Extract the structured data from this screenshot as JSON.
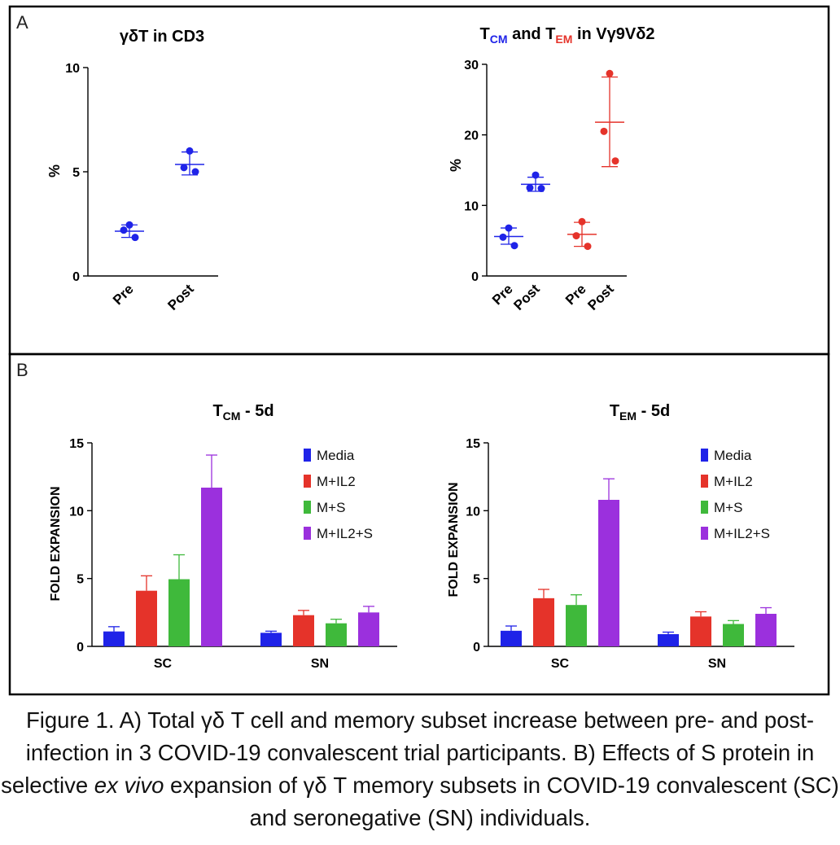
{
  "panel_a": {
    "letter": "A",
    "chart1": {
      "title": "γδT in CD3",
      "ylabel": "%",
      "y_ticks": [
        "0",
        "5",
        "10"
      ],
      "x_ticks": [
        "Pre",
        "Post"
      ]
    },
    "chart2": {
      "title_t1": "T",
      "title_sub1": "CM",
      "title_and": " and ",
      "title_t2": "T",
      "title_sub2": "EM",
      "title_rest": " in Vγ9Vδ2",
      "ylabel": "%",
      "y_ticks": [
        "0",
        "10",
        "20",
        "30"
      ],
      "x_ticks": [
        "Pre",
        "Post",
        "Pre",
        "Post"
      ]
    }
  },
  "panel_b": {
    "letter": "B",
    "chart3": {
      "title_t": "T",
      "title_sub": "CM",
      "title_rest": " - 5d",
      "ylabel": "FOLD EXPANSION",
      "y_ticks": [
        "0",
        "5",
        "10",
        "15"
      ],
      "x_ticks": [
        "SC",
        "SN"
      ]
    },
    "chart4": {
      "title_t": "T",
      "title_sub": "EM",
      "title_rest": " - 5d",
      "ylabel": "FOLD EXPANSION",
      "y_ticks": [
        "0",
        "5",
        "10",
        "15"
      ],
      "x_ticks": [
        "SC",
        "SN"
      ]
    },
    "legend": [
      "Media",
      "M+IL2",
      "M+S",
      "M+IL2+S"
    ]
  },
  "caption": {
    "part1": "Figure 1. A) Total γδ T cell and memory subset increase between pre- and post-infection in 3 COVID-19 convalescent trial participants. B) Effects of S protein in selective ",
    "italic": "ex vivo",
    "part2": " expansion of γδ T memory subsets in COVID-19 convalescent (SC) and seronegative (SN) individuals."
  },
  "colors": {
    "blue": "#1f23e8",
    "red": "#e5332a",
    "green": "#3fb93b",
    "purple": "#9b30dd",
    "axis": "#000000"
  },
  "chart_data": [
    {
      "type": "scatter",
      "title": "γδT in CD3",
      "xlabel": "",
      "ylabel": "%",
      "ylim": [
        0,
        10
      ],
      "categories": [
        "Pre",
        "Post"
      ],
      "series": [
        {
          "category": "Pre",
          "color": "#1f23e8",
          "points": [
            2.45,
            2.2,
            1.85
          ],
          "mean": 2.15,
          "sd_low": 1.85,
          "sd_high": 2.45
        },
        {
          "category": "Post",
          "color": "#1f23e8",
          "points": [
            6.0,
            5.2,
            5.0
          ],
          "mean": 5.35,
          "sd_low": 4.85,
          "sd_high": 5.95
        }
      ]
    },
    {
      "type": "scatter",
      "title": "TCM and TEM in Vγ9Vδ2",
      "xlabel": "",
      "ylabel": "%",
      "ylim": [
        0,
        30
      ],
      "categories": [
        "Pre",
        "Post",
        "Pre",
        "Post"
      ],
      "series": [
        {
          "category": "Pre",
          "color": "#1f23e8",
          "points": [
            6.8,
            5.5,
            4.3
          ],
          "mean": 5.6,
          "sd_low": 4.5,
          "sd_high": 6.8
        },
        {
          "category": "Post",
          "color": "#1f23e8",
          "points": [
            14.3,
            12.5,
            12.4
          ],
          "mean": 13.0,
          "sd_low": 12.0,
          "sd_high": 14.0
        },
        {
          "category": "Pre",
          "color": "#e5332a",
          "points": [
            7.7,
            5.7,
            4.2
          ],
          "mean": 5.9,
          "sd_low": 4.2,
          "sd_high": 7.6
        },
        {
          "category": "Post",
          "color": "#e5332a",
          "points": [
            28.7,
            20.5,
            16.3
          ],
          "mean": 21.8,
          "sd_low": 15.5,
          "sd_high": 28.2
        }
      ]
    },
    {
      "type": "bar",
      "title": "TCM - 5d",
      "xlabel": "",
      "ylabel": "FOLD EXPANSION",
      "ylim": [
        0,
        15
      ],
      "categories": [
        "SC",
        "SN"
      ],
      "series": [
        {
          "name": "Media",
          "color": "#1f23e8",
          "values": [
            1.1,
            1.0
          ],
          "errors": [
            0.35,
            0.12
          ]
        },
        {
          "name": "M+IL2",
          "color": "#e5332a",
          "values": [
            4.1,
            2.3
          ],
          "errors": [
            1.1,
            0.35
          ]
        },
        {
          "name": "M+S",
          "color": "#3fb93b",
          "values": [
            4.95,
            1.7
          ],
          "errors": [
            1.8,
            0.3
          ]
        },
        {
          "name": "M+IL2+S",
          "color": "#9b30dd",
          "values": [
            11.7,
            2.5
          ],
          "errors": [
            2.4,
            0.45
          ]
        }
      ]
    },
    {
      "type": "bar",
      "title": "TEM - 5d",
      "xlabel": "",
      "ylabel": "FOLD EXPANSION",
      "ylim": [
        0,
        15
      ],
      "categories": [
        "SC",
        "SN"
      ],
      "series": [
        {
          "name": "Media",
          "color": "#1f23e8",
          "values": [
            1.15,
            0.9
          ],
          "errors": [
            0.35,
            0.15
          ]
        },
        {
          "name": "M+IL2",
          "color": "#e5332a",
          "values": [
            3.55,
            2.2
          ],
          "errors": [
            0.65,
            0.35
          ]
        },
        {
          "name": "M+S",
          "color": "#3fb93b",
          "values": [
            3.05,
            1.65
          ],
          "errors": [
            0.75,
            0.25
          ]
        },
        {
          "name": "M+IL2+S",
          "color": "#9b30dd",
          "values": [
            10.8,
            2.4
          ],
          "errors": [
            1.55,
            0.45
          ]
        }
      ]
    }
  ]
}
